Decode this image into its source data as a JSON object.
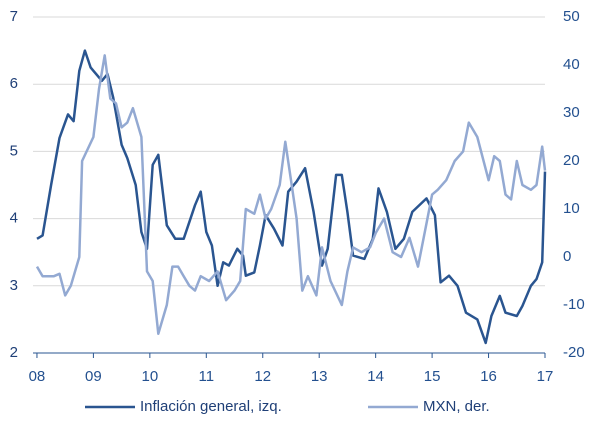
{
  "chart_data": {
    "type": "line",
    "xlim": [
      2007.93,
      2017.0
    ],
    "xticks": [
      {
        "value": 2008,
        "label": "08"
      },
      {
        "value": 2009,
        "label": "09"
      },
      {
        "value": 2010,
        "label": "10"
      },
      {
        "value": 2011,
        "label": "11"
      },
      {
        "value": 2012,
        "label": "12"
      },
      {
        "value": 2013,
        "label": "13"
      },
      {
        "value": 2014,
        "label": "14"
      },
      {
        "value": 2015,
        "label": "15"
      },
      {
        "value": 2016,
        "label": "16"
      },
      {
        "value": 2017,
        "label": "17"
      }
    ],
    "ylim": [
      2,
      7
    ],
    "yticks": [
      2,
      3,
      4,
      5,
      6,
      7
    ],
    "y2lim": [
      -20,
      50
    ],
    "y2ticks": [
      -20,
      -10,
      0,
      10,
      20,
      30,
      40,
      50
    ],
    "grid": true,
    "legend": "bottom",
    "series": [
      {
        "name": "Inflación general, izq.",
        "color": "#2a5590",
        "x": [
          2008.0,
          2008.1,
          2008.25,
          2008.4,
          2008.55,
          2008.65,
          2008.75,
          2008.85,
          2008.95,
          2009.0,
          2009.15,
          2009.25,
          2009.35,
          2009.5,
          2009.6,
          2009.75,
          2009.85,
          2009.95,
          2010.05,
          2010.15,
          2010.3,
          2010.45,
          2010.6,
          2010.8,
          2010.9,
          2011.0,
          2011.1,
          2011.2,
          2011.3,
          2011.4,
          2011.55,
          2011.65,
          2011.7,
          2011.85,
          2011.95,
          2012.05,
          2012.2,
          2012.35,
          2012.45,
          2012.6,
          2012.75,
          2012.9,
          2013.05,
          2013.15,
          2013.3,
          2013.4,
          2013.5,
          2013.6,
          2013.8,
          2013.95,
          2014.05,
          2014.2,
          2014.35,
          2014.5,
          2014.65,
          2014.9,
          2015.05,
          2015.15,
          2015.3,
          2015.45,
          2015.6,
          2015.8,
          2015.95,
          2016.05,
          2016.2,
          2016.3,
          2016.5,
          2016.6,
          2016.75,
          2016.85,
          2016.95,
          2017.0
        ],
        "values": [
          3.7,
          3.75,
          4.5,
          5.2,
          5.55,
          5.45,
          6.2,
          6.5,
          6.25,
          6.2,
          6.05,
          6.15,
          5.8,
          5.1,
          4.9,
          4.5,
          3.8,
          3.55,
          4.8,
          4.95,
          3.9,
          3.7,
          3.7,
          4.2,
          4.4,
          3.8,
          3.6,
          3.0,
          3.35,
          3.3,
          3.55,
          3.45,
          3.15,
          3.2,
          3.6,
          4.05,
          3.85,
          3.6,
          4.4,
          4.55,
          4.75,
          4.1,
          3.3,
          3.55,
          4.65,
          4.65,
          4.1,
          3.45,
          3.4,
          3.7,
          4.45,
          4.1,
          3.55,
          3.7,
          4.1,
          4.3,
          4.05,
          3.05,
          3.15,
          3.0,
          2.6,
          2.5,
          2.15,
          2.55,
          2.85,
          2.6,
          2.55,
          2.7,
          3.0,
          3.1,
          3.35,
          4.7
        ]
      },
      {
        "name": "MXN, der.",
        "color": "#93a9d2",
        "axis": "y2",
        "x": [
          2008.0,
          2008.1,
          2008.3,
          2008.4,
          2008.5,
          2008.6,
          2008.75,
          2008.8,
          2009.0,
          2009.1,
          2009.2,
          2009.3,
          2009.4,
          2009.5,
          2009.6,
          2009.7,
          2009.85,
          2009.95,
          2010.05,
          2010.15,
          2010.3,
          2010.4,
          2010.5,
          2010.6,
          2010.7,
          2010.8,
          2010.9,
          2011.05,
          2011.2,
          2011.35,
          2011.5,
          2011.6,
          2011.7,
          2011.85,
          2011.95,
          2012.05,
          2012.15,
          2012.3,
          2012.4,
          2012.5,
          2012.6,
          2012.7,
          2012.8,
          2012.95,
          2013.05,
          2013.2,
          2013.4,
          2013.5,
          2013.6,
          2013.75,
          2013.9,
          2014.0,
          2014.15,
          2014.3,
          2014.45,
          2014.6,
          2014.75,
          2014.9,
          2015.0,
          2015.1,
          2015.25,
          2015.4,
          2015.55,
          2015.65,
          2015.8,
          2016.0,
          2016.1,
          2016.2,
          2016.3,
          2016.4,
          2016.5,
          2016.6,
          2016.75,
          2016.85,
          2016.95,
          2017.0
        ],
        "values": [
          -2,
          -4,
          -4,
          -3.5,
          -8,
          -6,
          0,
          20,
          25,
          35,
          42,
          33,
          32,
          27,
          28,
          31,
          25,
          -3,
          -5,
          -16,
          -10,
          -2,
          -2,
          -4,
          -6,
          -7,
          -4,
          -5,
          -3,
          -9,
          -7,
          -5,
          10,
          9,
          13,
          8,
          10,
          15,
          24,
          16,
          8,
          -7,
          -4,
          -8,
          2,
          -5,
          -10,
          -3,
          2,
          1,
          2,
          5,
          8,
          1,
          0,
          4,
          -2,
          7,
          13,
          14,
          16,
          20,
          22,
          28,
          25,
          16,
          21,
          20,
          13,
          12,
          20,
          15,
          14,
          15,
          23,
          18
        ]
      }
    ]
  }
}
